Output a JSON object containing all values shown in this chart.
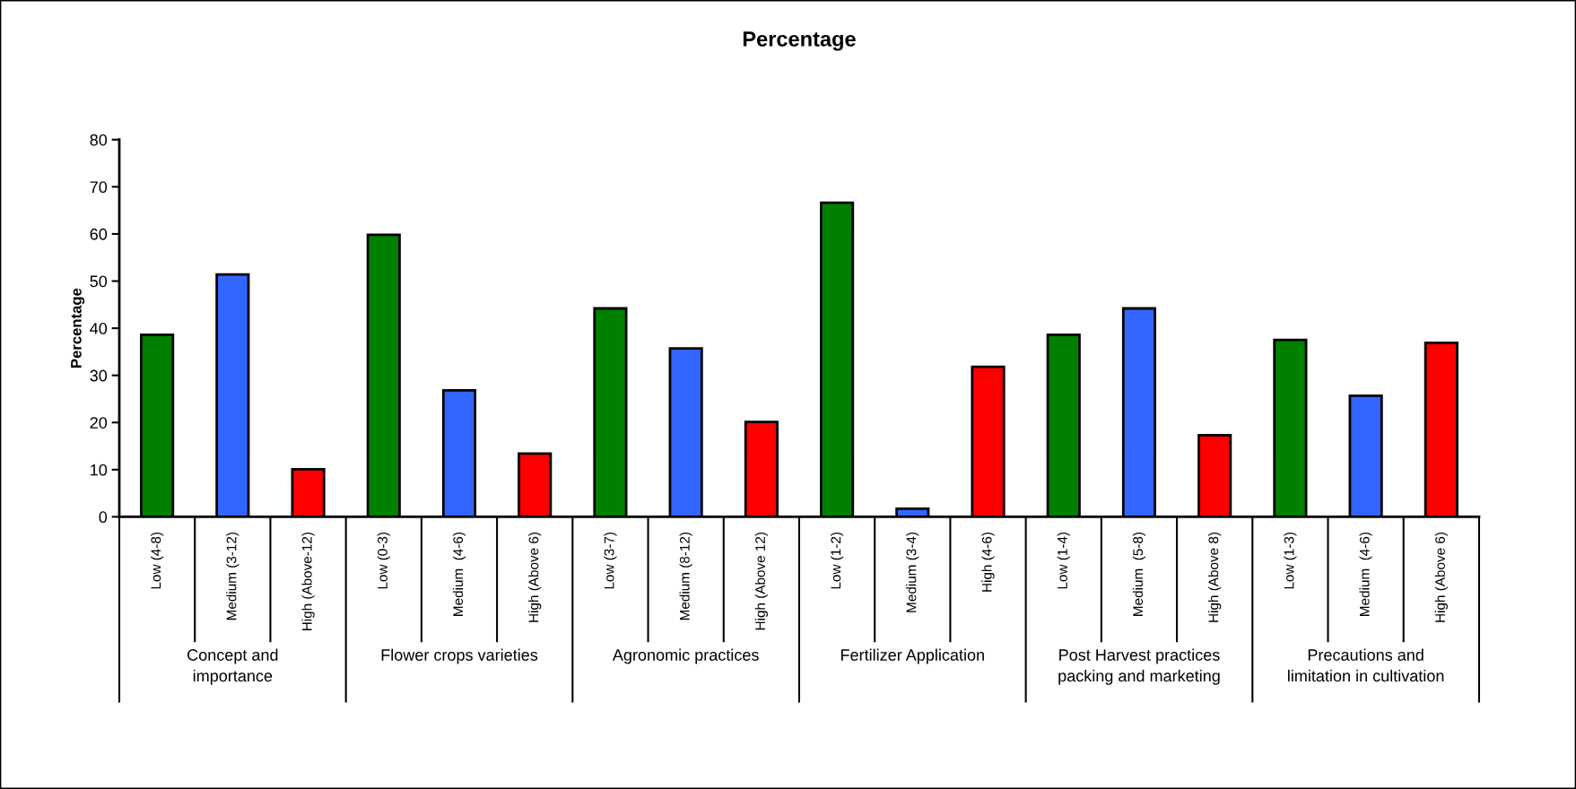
{
  "chart_data": {
    "type": "bar",
    "title": "Percentage",
    "ylabel": "Percentage",
    "categories": [
      "Low (4-8)",
      "Medium (3-12)",
      "High (Above-12)",
      "Low (0-3)",
      "Medium  (4-6)",
      "High (Above 6)",
      "Low (3-7)",
      "Medium (8-12)",
      "High (Above 12)",
      "Low (1-2)",
      "Medium (3-4)",
      "High (4-6)",
      "Low (1-4)",
      "Medium  (5-8)",
      "High (Above 8)",
      "Low (1-3)",
      "Medium  (4-6)",
      "High (Above 6)"
    ],
    "values": [
      38.6,
      51.4,
      10.1,
      59.8,
      26.8,
      13.4,
      44.2,
      35.7,
      20.1,
      66.6,
      1.7,
      31.8,
      38.6,
      44.2,
      17.3,
      37.5,
      25.7,
      36.9
    ],
    "colors": [
      "#008000",
      "#3366ff",
      "#ff0000",
      "#008000",
      "#3366ff",
      "#ff0000",
      "#008000",
      "#3366ff",
      "#ff0000",
      "#008000",
      "#3366ff",
      "#ff0000",
      "#008000",
      "#3366ff",
      "#ff0000",
      "#008000",
      "#3366ff",
      "#ff0000"
    ],
    "annotations": [
      "Concept and\nimportance",
      "Flower crops varieties",
      "Agronomic practices",
      "Fertilizer Application",
      "Post Harvest practices\npacking and marketing",
      "Precautions and\nlimitation in cultivation"
    ],
    "ylim": [
      0,
      80
    ],
    "yticks": [
      0,
      10,
      20,
      30,
      40,
      50,
      60,
      70,
      80
    ],
    "grid": false,
    "legend": false
  }
}
